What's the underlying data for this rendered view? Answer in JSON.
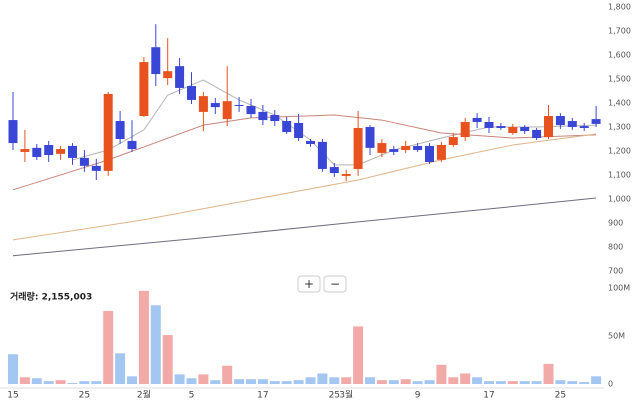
{
  "chart_data": [
    {
      "type": "candlestick",
      "categories": [
        "15",
        null,
        null,
        null,
        null,
        null,
        "25",
        null,
        null,
        null,
        null,
        "2월",
        null,
        null,
        null,
        "5",
        null,
        null,
        null,
        null,
        null,
        "17",
        null,
        null,
        null,
        null,
        null,
        "25",
        "3월",
        null,
        null,
        null,
        null,
        null,
        "9",
        null,
        null,
        null,
        null,
        null,
        "17",
        null,
        null,
        null,
        null,
        null,
        "25",
        null,
        null,
        null
      ],
      "open": [
        1329,
        1196,
        1213,
        1225,
        1188,
        1221,
        1171,
        1138,
        1117,
        1325,
        1242,
        1346,
        1633,
        1504,
        1554,
        1471,
        1363,
        1400,
        1333,
        1392,
        1388,
        1363,
        1350,
        1325,
        1317,
        1242,
        1238,
        1133,
        1096,
        1125,
        1300,
        1192,
        1208,
        1204,
        1221,
        1221,
        1163,
        1225,
        1258,
        1338,
        1321,
        1304,
        1275,
        1300,
        1288,
        1258,
        1346,
        1325,
        1304,
        1333
      ],
      "high": [
        1446,
        1288,
        1229,
        1242,
        1221,
        1233,
        1204,
        1167,
        1446,
        1367,
        1329,
        1592,
        1729,
        1671,
        1588,
        1529,
        1446,
        1421,
        1554,
        1425,
        1417,
        1392,
        1371,
        1342,
        1354,
        1250,
        1250,
        1150,
        1121,
        1367,
        1308,
        1250,
        1221,
        1242,
        1233,
        1233,
        1238,
        1275,
        1338,
        1358,
        1342,
        1317,
        1313,
        1308,
        1296,
        1392,
        1358,
        1338,
        1317,
        1388
      ],
      "low": [
        1204,
        1154,
        1163,
        1154,
        1163,
        1142,
        1113,
        1079,
        1096,
        1229,
        1196,
        1342,
        1471,
        1475,
        1438,
        1396,
        1283,
        1354,
        1304,
        1363,
        1338,
        1308,
        1304,
        1271,
        1242,
        1217,
        1113,
        1092,
        1075,
        1096,
        1183,
        1175,
        1183,
        1192,
        1196,
        1146,
        1154,
        1217,
        1242,
        1296,
        1275,
        1288,
        1267,
        1271,
        1246,
        1250,
        1292,
        1288,
        1283,
        1300
      ],
      "close": [
        1233,
        1208,
        1175,
        1183,
        1208,
        1171,
        1138,
        1117,
        1438,
        1250,
        1208,
        1571,
        1521,
        1533,
        1463,
        1413,
        1429,
        1383,
        1408,
        1388,
        1354,
        1329,
        1325,
        1279,
        1254,
        1229,
        1125,
        1108,
        1104,
        1296,
        1213,
        1233,
        1196,
        1221,
        1204,
        1154,
        1225,
        1258,
        1321,
        1321,
        1296,
        1296,
        1300,
        1283,
        1254,
        1346,
        1308,
        1300,
        1296,
        1313
      ],
      "up_color": "#e8521f",
      "down_color": "#3a47d6",
      "moving_averages": [
        {
          "color": "#b5b5b5",
          "x": [
            5,
            8,
            11,
            13,
            16,
            19,
            22,
            25,
            27,
            29,
            32,
            36,
            40,
            44,
            49
          ],
          "values": [
            1163,
            1204,
            1288,
            1433,
            1496,
            1413,
            1350,
            1246,
            1142,
            1142,
            1204,
            1254,
            1300,
            1300,
            1308
          ]
        },
        {
          "color": "#c9857a",
          "x": [
            0,
            4,
            8,
            11,
            16,
            20,
            27,
            31,
            36,
            42,
            49
          ],
          "values": [
            1038,
            1100,
            1163,
            1217,
            1308,
            1338,
            1350,
            1329,
            1275,
            1254,
            1267
          ]
        },
        {
          "color": "#e0b48a",
          "x": [
            0,
            11,
            20,
            29,
            36,
            42,
            49
          ],
          "values": [
            829,
            913,
            996,
            1079,
            1163,
            1225,
            1271
          ]
        },
        {
          "color": "#6e6e7e",
          "x": [
            0,
            16,
            29,
            41,
            49
          ],
          "values": [
            763,
            838,
            904,
            963,
            1004
          ]
        }
      ],
      "ylim": [
        670,
        1830
      ],
      "yticks": [
        700,
        800,
        900,
        {
          "value": 1000,
          "label": "1,000"
        },
        {
          "value": 1100,
          "label": "1,100"
        },
        {
          "value": 1200,
          "label": "1,200"
        },
        {
          "value": 1300,
          "label": "1,300"
        },
        {
          "value": 1400,
          "label": "1,400"
        },
        {
          "value": 1500,
          "label": "1,500"
        },
        {
          "value": 1600,
          "label": "1,600"
        },
        {
          "value": 1700,
          "label": "1,700"
        },
        {
          "value": 1800,
          "label": "1,800"
        }
      ]
    },
    {
      "type": "bar",
      "volume_label": "거래량: 2,155,003",
      "values": [
        31000000,
        7000000,
        6000000,
        3000000,
        4000000,
        1000000,
        3000000,
        3000000,
        76000000,
        32000000,
        8000000,
        97000000,
        82000000,
        51000000,
        10000000,
        6000000,
        10000000,
        4000000,
        19000000,
        5000000,
        5000000,
        5000000,
        3000000,
        3000000,
        4000000,
        7000000,
        11000000,
        7000000,
        7000000,
        60000000,
        7000000,
        4000000,
        4000000,
        5000000,
        3000000,
        4000000,
        20000000,
        7000000,
        11000000,
        7000000,
        3000000,
        3000000,
        3000000,
        3000000,
        3000000,
        21000000,
        4000000,
        3000000,
        2000000,
        8000000
      ],
      "up_color": "#f2aaa9",
      "down_color": "#a3c7f0",
      "ylim": [
        0,
        105000000
      ],
      "yticks": [
        0,
        {
          "value": 50000000,
          "label": "50M"
        },
        {
          "value": 100000000,
          "label": "100M"
        }
      ]
    }
  ],
  "zoom_buttons": [
    "+",
    "−"
  ]
}
